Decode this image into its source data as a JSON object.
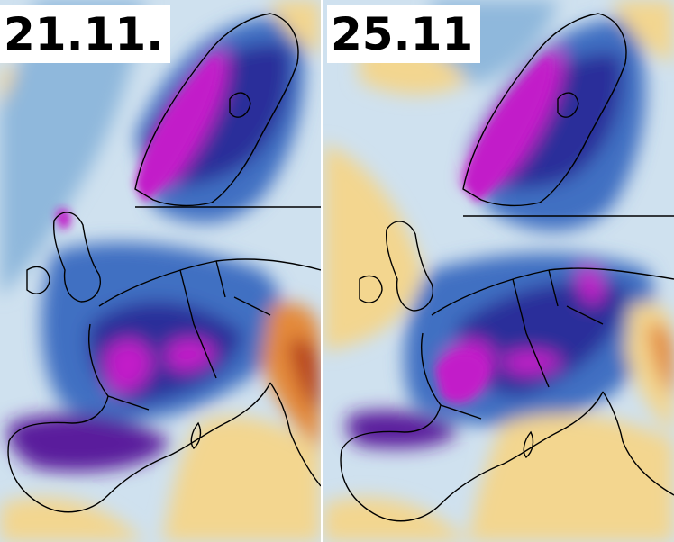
{
  "panels": [
    {
      "date_label": "21.11."
    },
    {
      "date_label": "25.11"
    }
  ],
  "colors": {
    "ocean_light": "#cfe1ef",
    "ocean_mid": "#8fb8dc",
    "blue": "#3f6fc2",
    "dark_blue": "#2a2f9a",
    "purple": "#5a1d9c",
    "magenta": "#c21ec9",
    "warm_yellow": "#f3d68f",
    "orange": "#e48a3a",
    "red_orange": "#b7431f",
    "coastline": "#000000"
  }
}
